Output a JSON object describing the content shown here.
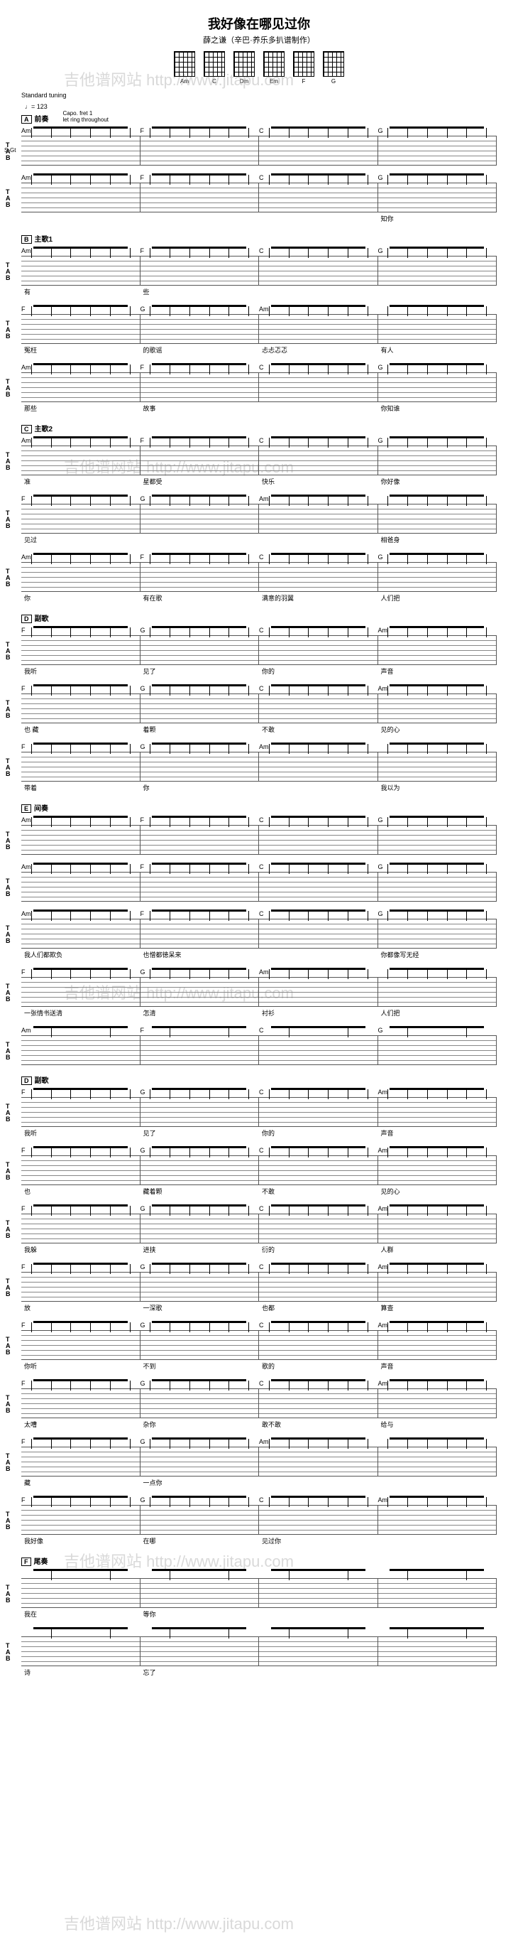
{
  "header": {
    "title": "我好像在哪见过你",
    "subtitle": "薛之谦（辛巴·养乐多扒谱制作）",
    "chords": [
      "Am",
      "C",
      "Dm",
      "Em",
      "F",
      "G"
    ]
  },
  "meta": {
    "tuning": "Standard tuning",
    "tempo": "♩= 123",
    "capo": "Capo. fret 1",
    "strum": "let ring throughout"
  },
  "marker_A": "A",
  "marker_B": "B",
  "marker_C": "C",
  "marker_D": "D",
  "marker_E": "E",
  "marker_F": "F",
  "section_intro": "前奏",
  "section_verse1": "主歌1",
  "section_verse2": "主歌2",
  "section_chorus": "副歌",
  "section_interlude": "间奏",
  "section_outro": "尾奏",
  "sgt": "S-Gt",
  "tab_T": "T",
  "tab_A": "A",
  "tab_B": "B",
  "watermark": "吉他谱网站 http://www.jitapu.com",
  "chord_progressions": {
    "intro": [
      "Am",
      "F",
      "C",
      "G"
    ],
    "verse": [
      "Am",
      "F",
      "C",
      "G"
    ],
    "verse_f": [
      "F",
      "G",
      "Am",
      ""
    ],
    "chorus_fg": [
      "F",
      "G",
      "C",
      "Am"
    ],
    "chorus_fgam": [
      "F",
      "G",
      "Am",
      ""
    ]
  },
  "lyrics": {
    "r1": [
      "",
      "",
      "",
      "知你"
    ],
    "r2": [
      "有",
      "些",
      "",
      ""
    ],
    "r3": [
      "冤枉",
      "的歌谣",
      "忐忐忑忑",
      "有人"
    ],
    "r4": [
      "那些",
      "故事",
      "",
      "你知谁"
    ],
    "r5": [
      "准",
      "星都受",
      "快乐",
      "你好像"
    ],
    "r6": [
      "见过",
      "",
      "",
      "相爸身"
    ],
    "r7": [
      "你",
      "有在歌",
      "满意的羽翼",
      "人们把"
    ],
    "r8": [
      "我听",
      "见了",
      "你的",
      "声音"
    ],
    "r9": [
      "也 藏",
      "着颗",
      "不敢",
      "见的心"
    ],
    "r10": [
      "带着",
      "你",
      "",
      "我以为"
    ],
    "r11": [
      "我人们都欺负",
      "也憎都徳呆来",
      "",
      "你都像写无经"
    ],
    "r12": [
      "一张情书送清",
      "怎清",
      "衬衫",
      "人们把"
    ],
    "r13": [
      "我听",
      "见了",
      "你的",
      "声音"
    ],
    "r14": [
      "也",
      "藏着颗",
      "不敢",
      "见的心"
    ],
    "r15": [
      "我躲",
      "进挟",
      "衍的",
      "人群"
    ],
    "r16": [
      "放",
      "一深歌",
      "也都",
      "算查"
    ],
    "r17": [
      "你听",
      "不到",
      "歌的",
      "声音"
    ],
    "r18": [
      "太嘈",
      "杂你",
      "敢不敢",
      "给与"
    ],
    "r19": [
      "藏",
      "一点你",
      "",
      ""
    ],
    "r20": [
      "我好像",
      "在哪",
      "见过你",
      ""
    ],
    "r21": [
      "我在",
      "等你",
      "",
      ""
    ],
    "r22": [
      "诗",
      "忘了",
      "",
      ""
    ]
  }
}
